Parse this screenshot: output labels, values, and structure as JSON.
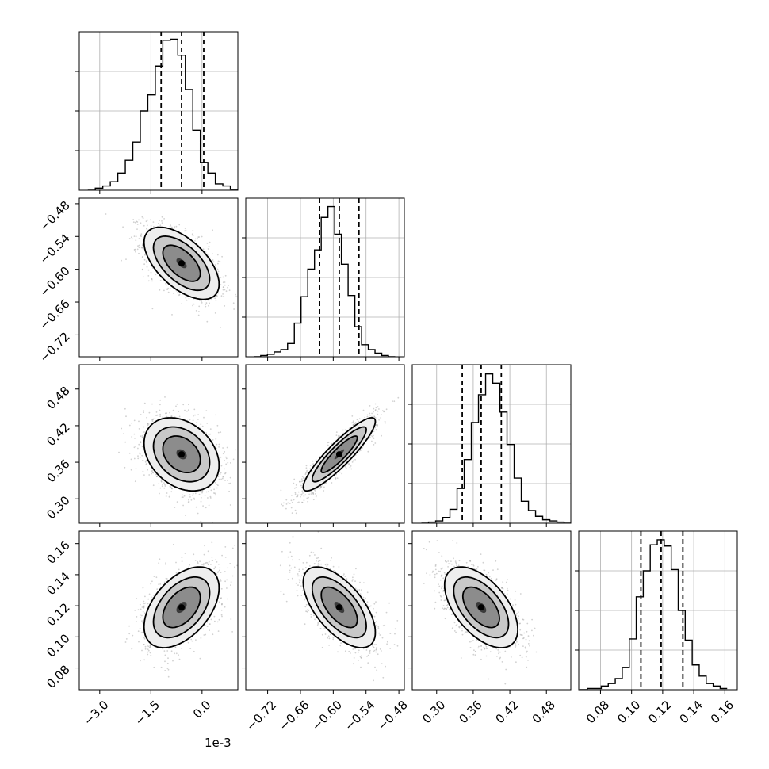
{
  "chart_data": {
    "type": "corner",
    "parameters": 4,
    "x_offset_label": "1e-3",
    "axes": [
      {
        "range": [
          -3.6,
          1.05
        ],
        "ticks": [
          -3.0,
          -1.5,
          0.0
        ],
        "tick_labels": [
          "−3.0",
          "−1.5",
          "0.0"
        ],
        "quantiles": [
          -1.2,
          -0.6,
          0.05
        ],
        "median": -0.6
      },
      {
        "range": [
          -0.76,
          -0.47
        ],
        "ticks": [
          -0.72,
          -0.66,
          -0.6,
          -0.54,
          -0.48
        ],
        "tick_labels": [
          "−0.72",
          "−0.66",
          "−0.60",
          "−0.54",
          "−0.48"
        ],
        "quantiles": [
          -0.625,
          -0.589,
          -0.553
        ],
        "median": -0.589
      },
      {
        "range": [
          0.26,
          0.52
        ],
        "ticks": [
          0.3,
          0.36,
          0.42,
          0.48
        ],
        "tick_labels": [
          "0.30",
          "0.36",
          "0.42",
          "0.48"
        ],
        "quantiles": [
          0.342,
          0.373,
          0.406
        ],
        "median": 0.373
      },
      {
        "range": [
          0.066,
          0.168
        ],
        "ticks": [
          0.08,
          0.1,
          0.12,
          0.14,
          0.16
        ],
        "tick_labels": [
          "0.08",
          "0.10",
          "0.12",
          "0.14",
          "0.16"
        ],
        "quantiles": [
          0.106,
          0.119,
          0.133
        ],
        "median": 0.119
      }
    ],
    "histograms": [
      {
        "parameter": 0,
        "edges_start": -3.35,
        "bin_width": 0.22,
        "counts": [
          0,
          2,
          4,
          8,
          16,
          28,
          45,
          74,
          89,
          116,
          140,
          141,
          126,
          94,
          56,
          26,
          16,
          6,
          4,
          1,
          0
        ],
        "ymax": 148
      },
      {
        "parameter": 1,
        "edges_start": -0.745,
        "bin_width": 0.0123,
        "counts": [
          0,
          1,
          2,
          4,
          6,
          11,
          28,
          50,
          73,
          89,
          116,
          125,
          102,
          77,
          51,
          25,
          10,
          6,
          3,
          1,
          0
        ],
        "ymax": 132
      },
      {
        "parameter": 2,
        "edges_start": 0.275,
        "bin_width": 0.0117,
        "counts": [
          0,
          1,
          2,
          5,
          12,
          30,
          55,
          87,
          111,
          129,
          121,
          96,
          68,
          39,
          19,
          11,
          6,
          3,
          2,
          1,
          0
        ],
        "ymax": 137
      },
      {
        "parameter": 3,
        "edges_start": 0.067,
        "bin_width": 0.0045,
        "counts": [
          0,
          1,
          1,
          3,
          5,
          9,
          18,
          41,
          75,
          96,
          117,
          121,
          116,
          97,
          64,
          40,
          20,
          11,
          5,
          3,
          1
        ],
        "ymax": 128
      }
    ],
    "pairs": [
      {
        "x": 0,
        "y": 1,
        "mean": [
          -0.6,
          -0.589
        ],
        "sd": [
          0.55,
          0.033
        ],
        "rho": -0.58
      },
      {
        "x": 0,
        "y": 2,
        "mean": [
          -0.6,
          0.373
        ],
        "sd": [
          0.55,
          0.03
        ],
        "rho": -0.3
      },
      {
        "x": 1,
        "y": 2,
        "mean": [
          -0.589,
          0.373
        ],
        "sd": [
          0.033,
          0.03
        ],
        "rho": 0.9
      },
      {
        "x": 0,
        "y": 3,
        "mean": [
          -0.6,
          0.119
        ],
        "sd": [
          0.55,
          0.013
        ],
        "rho": 0.48
      },
      {
        "x": 1,
        "y": 3,
        "mean": [
          -0.589,
          0.119
        ],
        "sd": [
          0.033,
          0.013
        ],
        "rho": -0.62
      },
      {
        "x": 2,
        "y": 3,
        "mean": [
          0.373,
          0.119
        ],
        "sd": [
          0.03,
          0.013
        ],
        "rho": -0.55
      }
    ],
    "contour_levels": [
      0.5,
      1.0,
      1.5,
      2.0
    ],
    "grid": true,
    "legend": "none"
  }
}
